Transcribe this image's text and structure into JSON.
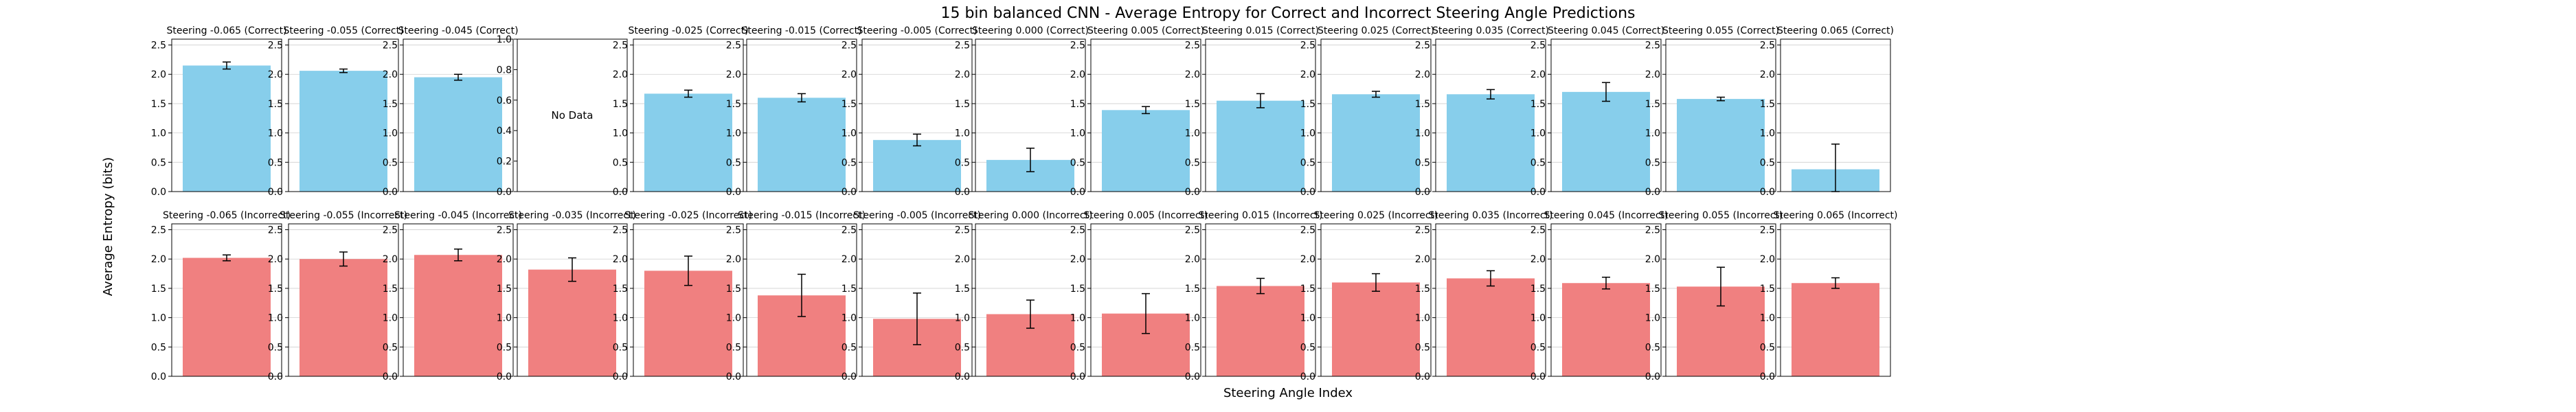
{
  "chart_data": {
    "type": "bar",
    "title": "15 bin balanced CNN - Average Entropy for Correct and Incorrect Steering Angle Predictions",
    "xlabel": "Steering Angle Index",
    "ylabel": "Average Entropy (bits)",
    "ylim": [
      0,
      2.6
    ],
    "yticks": [
      "0.0",
      "0.5",
      "1.0",
      "1.5",
      "2.0",
      "2.5"
    ],
    "empty_yticks": [
      "0.0",
      "0.2",
      "0.4",
      "0.6",
      "0.8",
      "1.0"
    ],
    "no_data_label": "No Data",
    "grid": "y",
    "colors": {
      "correct": "#87ceeb",
      "incorrect": "#f08080",
      "error": "#000000"
    },
    "rows": [
      {
        "name": "Correct",
        "panels": [
          {
            "title": "Steering -0.065 (Correct)",
            "value": 2.15,
            "err": 0.06
          },
          {
            "title": "Steering -0.055 (Correct)",
            "value": 2.06,
            "err": 0.03
          },
          {
            "title": "Steering -0.045 (Correct)",
            "value": 1.95,
            "err": 0.05
          },
          {
            "title": "",
            "value": null,
            "err": null
          },
          {
            "title": "Steering -0.025 (Correct)",
            "value": 1.67,
            "err": 0.06
          },
          {
            "title": "Steering -0.015 (Correct)",
            "value": 1.6,
            "err": 0.07
          },
          {
            "title": "Steering -0.005 (Correct)",
            "value": 0.88,
            "err": 0.1
          },
          {
            "title": "Steering 0.000 (Correct)",
            "value": 0.54,
            "err": 0.2
          },
          {
            "title": "Steering 0.005 (Correct)",
            "value": 1.39,
            "err": 0.06
          },
          {
            "title": "Steering 0.015 (Correct)",
            "value": 1.55,
            "err": 0.12
          },
          {
            "title": "Steering 0.025 (Correct)",
            "value": 1.66,
            "err": 0.05
          },
          {
            "title": "Steering 0.035 (Correct)",
            "value": 1.66,
            "err": 0.08
          },
          {
            "title": "Steering 0.045 (Correct)",
            "value": 1.7,
            "err": 0.16
          },
          {
            "title": "Steering 0.055 (Correct)",
            "value": 1.58,
            "err": 0.03
          },
          {
            "title": "Steering 0.065 (Correct)",
            "value": 0.38,
            "err": 0.43
          }
        ]
      },
      {
        "name": "Incorrect",
        "panels": [
          {
            "title": "Steering -0.065 (Incorrect)",
            "value": 2.02,
            "err": 0.05
          },
          {
            "title": "Steering -0.055 (Incorrect)",
            "value": 2.0,
            "err": 0.12
          },
          {
            "title": "Steering -0.045 (Incorrect)",
            "value": 2.07,
            "err": 0.1
          },
          {
            "title": "Steering -0.035 (Incorrect)",
            "value": 1.82,
            "err": 0.2
          },
          {
            "title": "Steering -0.025 (Incorrect)",
            "value": 1.8,
            "err": 0.25
          },
          {
            "title": "Steering -0.015 (Incorrect)",
            "value": 1.38,
            "err": 0.36
          },
          {
            "title": "Steering -0.005 (Incorrect)",
            "value": 0.98,
            "err": 0.44
          },
          {
            "title": "Steering 0.000 (Incorrect)",
            "value": 1.06,
            "err": 0.24
          },
          {
            "title": "Steering 0.005 (Incorrect)",
            "value": 1.07,
            "err": 0.34
          },
          {
            "title": "Steering 0.015 (Incorrect)",
            "value": 1.54,
            "err": 0.13
          },
          {
            "title": "Steering 0.025 (Incorrect)",
            "value": 1.6,
            "err": 0.15
          },
          {
            "title": "Steering 0.035 (Incorrect)",
            "value": 1.67,
            "err": 0.13
          },
          {
            "title": "Steering 0.045 (Incorrect)",
            "value": 1.59,
            "err": 0.1
          },
          {
            "title": "Steering 0.055 (Incorrect)",
            "value": 1.53,
            "err": 0.33
          },
          {
            "title": "Steering 0.065 (Incorrect)",
            "value": 1.59,
            "err": 0.09
          }
        ]
      }
    ]
  }
}
